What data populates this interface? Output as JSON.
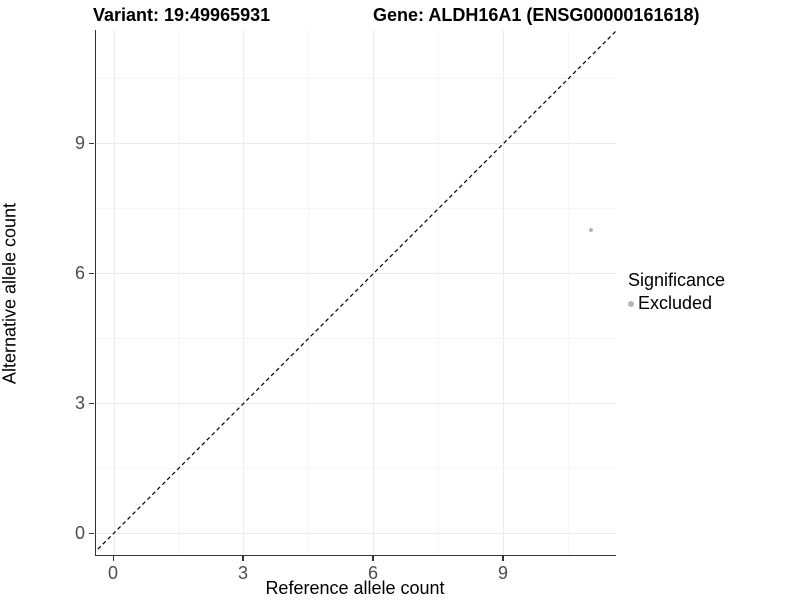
{
  "header": {
    "variant_title": "Variant: 19:49965931",
    "gene_title": "Gene: ALDH16A1 (ENSG00000161618)"
  },
  "axes": {
    "x_label": "Reference allele count",
    "y_label": "Alternative allele count"
  },
  "legend": {
    "title": "Significance",
    "items": [
      {
        "label": "Excluded",
        "color": "#b5b5b5"
      }
    ]
  },
  "colors": {
    "background": "#ffffff",
    "grid_major": "#ebebeb",
    "grid_minor": "#f5f5f5",
    "axis_line": "#333333",
    "tick_label": "#4d4d4d",
    "point": "#b5b5b5",
    "dashed_line": "#000000"
  },
  "chart_data": {
    "type": "scatter",
    "title": "Variant: 19:49965931 | Gene: ALDH16A1 (ENSG00000161618)",
    "xlabel": "Reference allele count",
    "ylabel": "Alternative allele count",
    "xlim": [
      -0.6,
      11.6
    ],
    "ylim": [
      -0.6,
      11.6
    ],
    "x_ticks": [
      0,
      3,
      6,
      9
    ],
    "y_ticks": [
      0,
      3,
      6,
      9
    ],
    "x_minor_ticks": [
      1.5,
      4.5,
      7.5,
      10.5
    ],
    "y_minor_ticks": [
      1.5,
      4.5,
      7.5,
      10.5
    ],
    "grid": "major and minor, light gray on white",
    "legend_position": "right",
    "legend_title": "Significance",
    "reference_line": {
      "type": "identity y=x",
      "style": "dashed",
      "color": "#000000"
    },
    "series": [
      {
        "name": "Excluded",
        "color": "#b5b5b5",
        "points": [
          {
            "x": 11,
            "y": 7
          }
        ]
      }
    ]
  }
}
